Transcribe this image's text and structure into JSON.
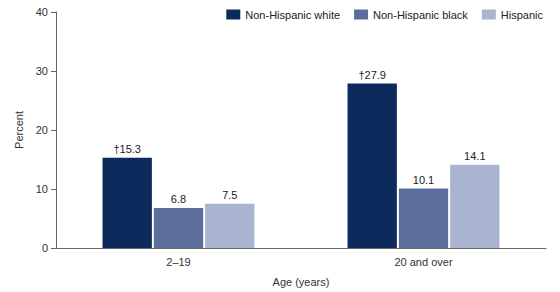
{
  "chart_data": {
    "type": "bar",
    "x_label": "Age (years)",
    "y_label": "Percent",
    "categories": [
      "2–19",
      "20 and over"
    ],
    "series": [
      {
        "name": "Non-Hispanic white",
        "color": "#0c2a5c",
        "values": [
          15.3,
          27.9
        ],
        "value_labels": [
          "†15.3",
          "†27.9"
        ]
      },
      {
        "name": "Non-Hispanic black",
        "color": "#5b6e9b",
        "values": [
          6.8,
          10.1
        ]
      },
      {
        "name": "Hispanic",
        "color": "#a8b4d0",
        "values": [
          7.5,
          14.1
        ]
      }
    ],
    "ylim": [
      0,
      40
    ],
    "yticks": [
      0,
      10,
      20,
      30,
      40
    ],
    "grid": false,
    "legend": "top-right",
    "data_labels": true
  }
}
